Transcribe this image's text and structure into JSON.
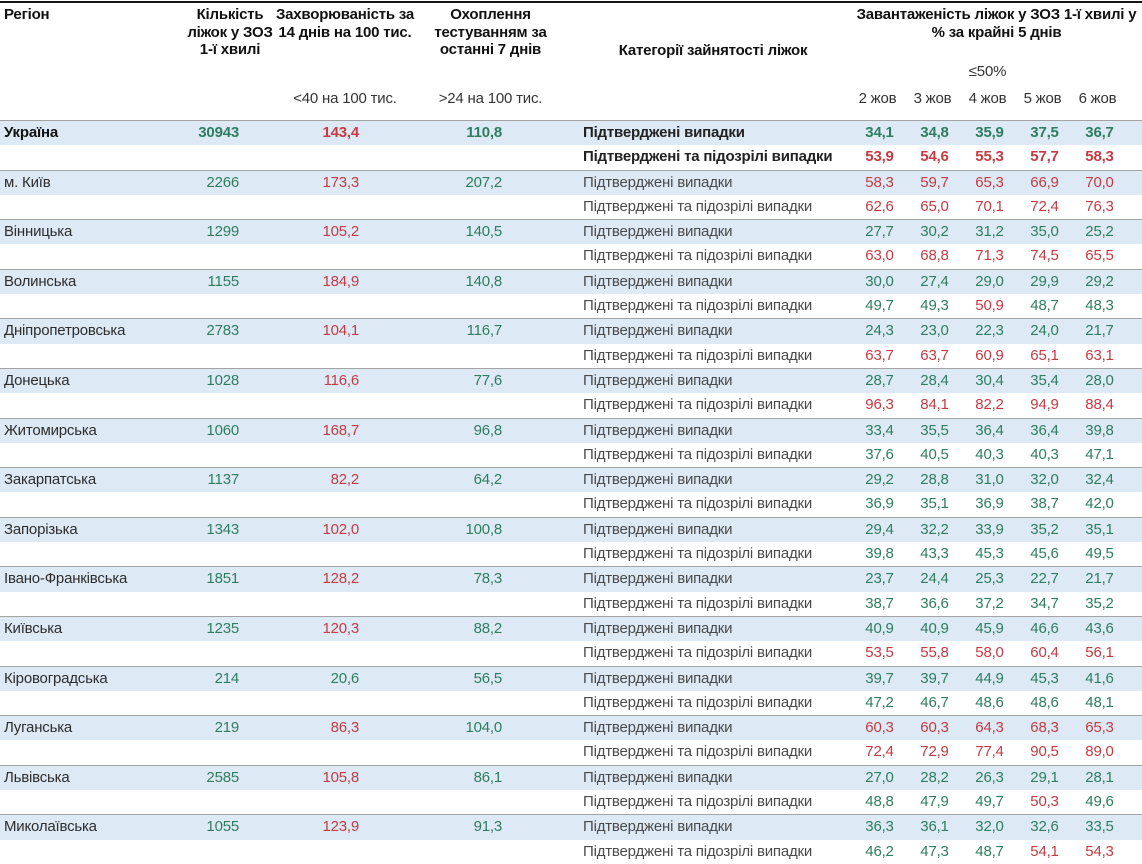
{
  "header": {
    "col_region": "Регіон",
    "col_beds": "Кількість ліжок у ЗОЗ 1-ї хвилі",
    "col_incidence": "Захворюваність за 14 днів на 100 тис.",
    "col_testing": "Охоплення тестуванням за останні 7 днів",
    "col_categories": "Категорії зайнятості ліжок",
    "col_occupancy": "Завантаженість ліжок у ЗОЗ 1-ї хвилі у % за крайні 5 днів",
    "incidence_threshold": "<40 на 100 тис.",
    "testing_threshold": ">24 на 100 тис.",
    "occupancy_threshold": "≤50%",
    "dates": [
      "2 жов",
      "3 жов",
      "4 жов",
      "5 жов",
      "6 жов"
    ]
  },
  "labels": {
    "confirmed": "Підтверджені випадки",
    "confirmed_suspected": "Підтверджені та підозрілі випадки"
  },
  "colors": {
    "positive": "#2e7d5e",
    "negative": "#c43b43",
    "row_highlight": "#ddeaf6"
  },
  "color_rules": {
    "occupancy_red_above": 50,
    "incidence_green_below": 40,
    "testing_green_above": 24
  },
  "rows": [
    {
      "region": "Україна",
      "bold": true,
      "beds": "30943",
      "incidence": "143,4",
      "testing": "110,8",
      "confirmed": [
        "34,1",
        "34,8",
        "35,9",
        "37,5",
        "36,7"
      ],
      "suspected": [
        "53,9",
        "54,6",
        "55,3",
        "57,7",
        "58,3"
      ]
    },
    {
      "region": "м. Київ",
      "beds": "2266",
      "incidence": "173,3",
      "testing": "207,2",
      "confirmed": [
        "58,3",
        "59,7",
        "65,3",
        "66,9",
        "70,0"
      ],
      "suspected": [
        "62,6",
        "65,0",
        "70,1",
        "72,4",
        "76,3"
      ]
    },
    {
      "region": "Вінницька",
      "beds": "1299",
      "incidence": "105,2",
      "testing": "140,5",
      "confirmed": [
        "27,7",
        "30,2",
        "31,2",
        "35,0",
        "25,2"
      ],
      "suspected": [
        "63,0",
        "68,8",
        "71,3",
        "74,5",
        "65,5"
      ]
    },
    {
      "region": "Волинська",
      "beds": "1155",
      "incidence": "184,9",
      "testing": "140,8",
      "confirmed": [
        "30,0",
        "27,4",
        "29,0",
        "29,9",
        "29,2"
      ],
      "suspected": [
        "49,7",
        "49,3",
        "50,9",
        "48,7",
        "48,3"
      ]
    },
    {
      "region": "Дніпропетровська",
      "beds": "2783",
      "incidence": "104,1",
      "testing": "116,7",
      "confirmed": [
        "24,3",
        "23,0",
        "22,3",
        "24,0",
        "21,7"
      ],
      "suspected": [
        "63,7",
        "63,7",
        "60,9",
        "65,1",
        "63,1"
      ]
    },
    {
      "region": "Донецька",
      "beds": "1028",
      "incidence": "116,6",
      "testing": "77,6",
      "confirmed": [
        "28,7",
        "28,4",
        "30,4",
        "35,4",
        "28,0"
      ],
      "suspected": [
        "96,3",
        "84,1",
        "82,2",
        "94,9",
        "88,4"
      ]
    },
    {
      "region": "Житомирська",
      "beds": "1060",
      "incidence": "168,7",
      "testing": "96,8",
      "confirmed": [
        "33,4",
        "35,5",
        "36,4",
        "36,4",
        "39,8"
      ],
      "suspected": [
        "37,6",
        "40,5",
        "40,3",
        "40,3",
        "47,1"
      ]
    },
    {
      "region": "Закарпатська",
      "beds": "1137",
      "incidence": "82,2",
      "testing": "64,2",
      "confirmed": [
        "29,2",
        "28,8",
        "31,0",
        "32,0",
        "32,4"
      ],
      "suspected": [
        "36,9",
        "35,1",
        "36,9",
        "38,7",
        "42,0"
      ]
    },
    {
      "region": "Запорізька",
      "beds": "1343",
      "incidence": "102,0",
      "testing": "100,8",
      "confirmed": [
        "29,4",
        "32,2",
        "33,9",
        "35,2",
        "35,1"
      ],
      "suspected": [
        "39,8",
        "43,3",
        "45,3",
        "45,6",
        "49,5"
      ]
    },
    {
      "region": "Івано-Франківська",
      "beds": "1851",
      "incidence": "128,2",
      "testing": "78,3",
      "confirmed": [
        "23,7",
        "24,4",
        "25,3",
        "22,7",
        "21,7"
      ],
      "suspected": [
        "38,7",
        "36,6",
        "37,2",
        "34,7",
        "35,2"
      ]
    },
    {
      "region": "Київська",
      "beds": "1235",
      "incidence": "120,3",
      "testing": "88,2",
      "confirmed": [
        "40,9",
        "40,9",
        "45,9",
        "46,6",
        "43,6"
      ],
      "suspected": [
        "53,5",
        "55,8",
        "58,0",
        "60,4",
        "56,1"
      ]
    },
    {
      "region": "Кіровоградська",
      "beds": "214",
      "incidence": "20,6",
      "testing": "56,5",
      "confirmed": [
        "39,7",
        "39,7",
        "44,9",
        "45,3",
        "41,6"
      ],
      "suspected": [
        "47,2",
        "46,7",
        "48,6",
        "48,6",
        "48,1"
      ]
    },
    {
      "region": "Луганська",
      "beds": "219",
      "incidence": "86,3",
      "testing": "104,0",
      "confirmed": [
        "60,3",
        "60,3",
        "64,3",
        "68,3",
        "65,3"
      ],
      "suspected": [
        "72,4",
        "72,9",
        "77,4",
        "90,5",
        "89,0"
      ]
    },
    {
      "region": "Львівська",
      "beds": "2585",
      "incidence": "105,8",
      "testing": "86,1",
      "confirmed": [
        "27,0",
        "28,2",
        "26,3",
        "29,1",
        "28,1"
      ],
      "suspected": [
        "48,8",
        "47,9",
        "49,7",
        "50,3",
        "49,6"
      ]
    },
    {
      "region": "Миколаївська",
      "beds": "1055",
      "incidence": "123,9",
      "testing": "91,3",
      "confirmed": [
        "36,3",
        "36,1",
        "32,0",
        "32,6",
        "33,5"
      ],
      "suspected": [
        "46,2",
        "47,3",
        "48,7",
        "54,1",
        "54,3"
      ]
    }
  ]
}
